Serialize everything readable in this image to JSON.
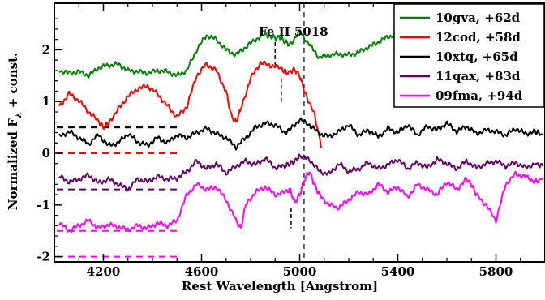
{
  "chart_data": {
    "type": "line",
    "xlabel": "Rest Wavelength [Angstrom]",
    "ylabel_main": "Normalized F",
    "ylabel_sub": "λ",
    "ylabel_tail": " + const.",
    "xlim": [
      4000,
      6000
    ],
    "ylim": [
      -2.1,
      2.9
    ],
    "xticks": [
      4200,
      4600,
      5000,
      5400,
      5800
    ],
    "yticks": [
      -2,
      -1,
      0,
      1,
      2
    ],
    "annotation": {
      "text": "Fe II 5018",
      "x": 5018
    },
    "vlines": [
      5018
    ],
    "legend_position": "top-right",
    "series": [
      {
        "name": "10gva, +62d",
        "color": "#008000",
        "zero_offset": 0.5,
        "x": [
          4020,
          4060,
          4100,
          4140,
          4180,
          4220,
          4260,
          4300,
          4340,
          4380,
          4420,
          4460,
          4500,
          4540,
          4580,
          4620,
          4660,
          4700,
          4740,
          4780,
          4820,
          4860,
          4900,
          4920,
          4940,
          4960,
          5000,
          5040,
          5080,
          5120,
          5160,
          5200,
          5240,
          5280,
          5320,
          5360,
          5400,
          5440,
          5480,
          5520,
          5560,
          5600,
          5640,
          5680,
          5720,
          5760,
          5800,
          5840,
          5880,
          5920,
          5960,
          5990
        ],
        "y": [
          1.6,
          1.55,
          1.58,
          1.5,
          1.65,
          1.7,
          1.72,
          1.6,
          1.58,
          1.55,
          1.6,
          1.58,
          1.5,
          1.6,
          2.0,
          2.28,
          2.2,
          2.0,
          1.9,
          2.05,
          2.2,
          2.3,
          2.22,
          2.25,
          2.15,
          2.1,
          2.35,
          2.1,
          1.85,
          1.9,
          1.92,
          1.9,
          1.95,
          2.05,
          2.15,
          2.25,
          2.3,
          2.2,
          2.15,
          2.18,
          2.1,
          2.05,
          2.12,
          2.1,
          1.95,
          1.88,
          1.92,
          2.0,
          2.05,
          2.1,
          2.05,
          2.1
        ]
      },
      {
        "name": "12cod, +58d",
        "color": "#ff0000",
        "zero_offset": 0.0,
        "x": [
          4020,
          4060,
          4100,
          4140,
          4180,
          4200,
          4220,
          4260,
          4300,
          4340,
          4380,
          4420,
          4460,
          4500,
          4540,
          4580,
          4620,
          4660,
          4700,
          4720,
          4740,
          4760,
          4800,
          4840,
          4880,
          4920,
          4950,
          4980,
          5000,
          5020,
          5060,
          5090
        ],
        "y": [
          0.9,
          1.15,
          1.02,
          0.8,
          0.62,
          0.5,
          0.58,
          0.85,
          1.1,
          1.25,
          1.3,
          1.15,
          0.92,
          0.7,
          0.9,
          1.5,
          1.72,
          1.6,
          1.2,
          0.75,
          0.6,
          0.85,
          1.45,
          1.75,
          1.7,
          1.65,
          1.55,
          1.62,
          1.5,
          1.2,
          0.75,
          0.1
        ]
      },
      {
        "name": "10xtq, +65d",
        "color": "#000000",
        "zero_offset": 0.5,
        "x": [
          4020,
          4060,
          4100,
          4140,
          4180,
          4220,
          4260,
          4300,
          4340,
          4380,
          4420,
          4460,
          4500,
          4540,
          4580,
          4620,
          4660,
          4700,
          4740,
          4780,
          4820,
          4860,
          4900,
          4940,
          4960,
          5000,
          5040,
          5080,
          5120,
          5160,
          5200,
          5240,
          5280,
          5320,
          5360,
          5400,
          5440,
          5480,
          5520,
          5560,
          5600,
          5640,
          5680,
          5720,
          5760,
          5800,
          5840,
          5880,
          5920,
          5960,
          5990
        ],
        "y": [
          0.32,
          0.42,
          0.3,
          0.18,
          0.36,
          0.15,
          0.2,
          0.38,
          0.22,
          0.15,
          0.3,
          0.2,
          0.35,
          0.3,
          0.4,
          0.48,
          0.38,
          0.3,
          0.12,
          0.3,
          0.5,
          0.58,
          0.55,
          0.4,
          0.45,
          0.65,
          0.55,
          0.38,
          0.32,
          0.42,
          0.55,
          0.35,
          0.45,
          0.32,
          0.48,
          0.4,
          0.55,
          0.35,
          0.52,
          0.45,
          0.58,
          0.42,
          0.52,
          0.38,
          0.45,
          0.42,
          0.35,
          0.48,
          0.38,
          0.42,
          0.36
        ]
      },
      {
        "name": "11qax, +83d",
        "color": "#660066",
        "zero_offset": -0.7,
        "x": [
          4020,
          4060,
          4100,
          4140,
          4180,
          4220,
          4260,
          4300,
          4340,
          4380,
          4420,
          4460,
          4500,
          4540,
          4580,
          4620,
          4660,
          4700,
          4740,
          4780,
          4820,
          4860,
          4900,
          4940,
          4960,
          4980,
          5000,
          5040,
          5080,
          5120,
          5160,
          5200,
          5240,
          5280,
          5320,
          5360,
          5400,
          5440,
          5480,
          5520,
          5560,
          5600,
          5640,
          5680,
          5720,
          5760,
          5800,
          5840,
          5880,
          5920,
          5960,
          5990
        ],
        "y": [
          -0.45,
          -0.55,
          -0.5,
          -0.42,
          -0.58,
          -0.5,
          -0.6,
          -0.7,
          -0.5,
          -0.55,
          -0.45,
          -0.5,
          -0.48,
          -0.35,
          -0.15,
          -0.3,
          -0.2,
          -0.38,
          -0.25,
          -0.15,
          -0.22,
          -0.1,
          -0.28,
          -0.25,
          -0.2,
          -0.15,
          -0.05,
          -0.12,
          -0.35,
          -0.4,
          -0.2,
          -0.35,
          -0.3,
          -0.18,
          -0.3,
          -0.22,
          -0.12,
          -0.3,
          -0.18,
          -0.28,
          -0.12,
          -0.2,
          -0.3,
          -0.15,
          -0.28,
          -0.2,
          -0.15,
          -0.25,
          -0.18,
          -0.28,
          -0.2,
          -0.25
        ]
      },
      {
        "name": "09fma, +94d",
        "color": "#ff00ff",
        "zero_offset": -1.5,
        "x": [
          4020,
          4060,
          4100,
          4140,
          4180,
          4220,
          4260,
          4300,
          4340,
          4380,
          4420,
          4460,
          4500,
          4540,
          4580,
          4620,
          4660,
          4700,
          4740,
          4760,
          4780,
          4820,
          4860,
          4900,
          4940,
          4960,
          4980,
          5000,
          5020,
          5040,
          5060,
          5080,
          5120,
          5160,
          5200,
          5240,
          5280,
          5320,
          5360,
          5400,
          5440,
          5480,
          5520,
          5560,
          5600,
          5640,
          5680,
          5700,
          5720,
          5760,
          5800,
          5840,
          5880,
          5920,
          5960,
          5990
        ],
        "y": [
          -1.35,
          -1.5,
          -1.4,
          -1.3,
          -1.45,
          -1.38,
          -1.42,
          -1.48,
          -1.4,
          -1.45,
          -1.35,
          -1.4,
          -1.3,
          -0.8,
          -0.6,
          -0.7,
          -0.65,
          -0.9,
          -1.3,
          -1.45,
          -1.0,
          -0.75,
          -0.65,
          -0.8,
          -0.75,
          -0.7,
          -0.95,
          -0.8,
          -0.5,
          -0.35,
          -0.6,
          -0.8,
          -1.0,
          -1.05,
          -0.9,
          -0.75,
          -0.8,
          -0.6,
          -0.75,
          -0.65,
          -0.85,
          -0.6,
          -0.7,
          -0.8,
          -0.55,
          -0.7,
          -0.5,
          -0.6,
          -0.8,
          -1.0,
          -1.3,
          -0.6,
          -0.4,
          -0.45,
          -0.55,
          -0.5
        ]
      }
    ]
  }
}
